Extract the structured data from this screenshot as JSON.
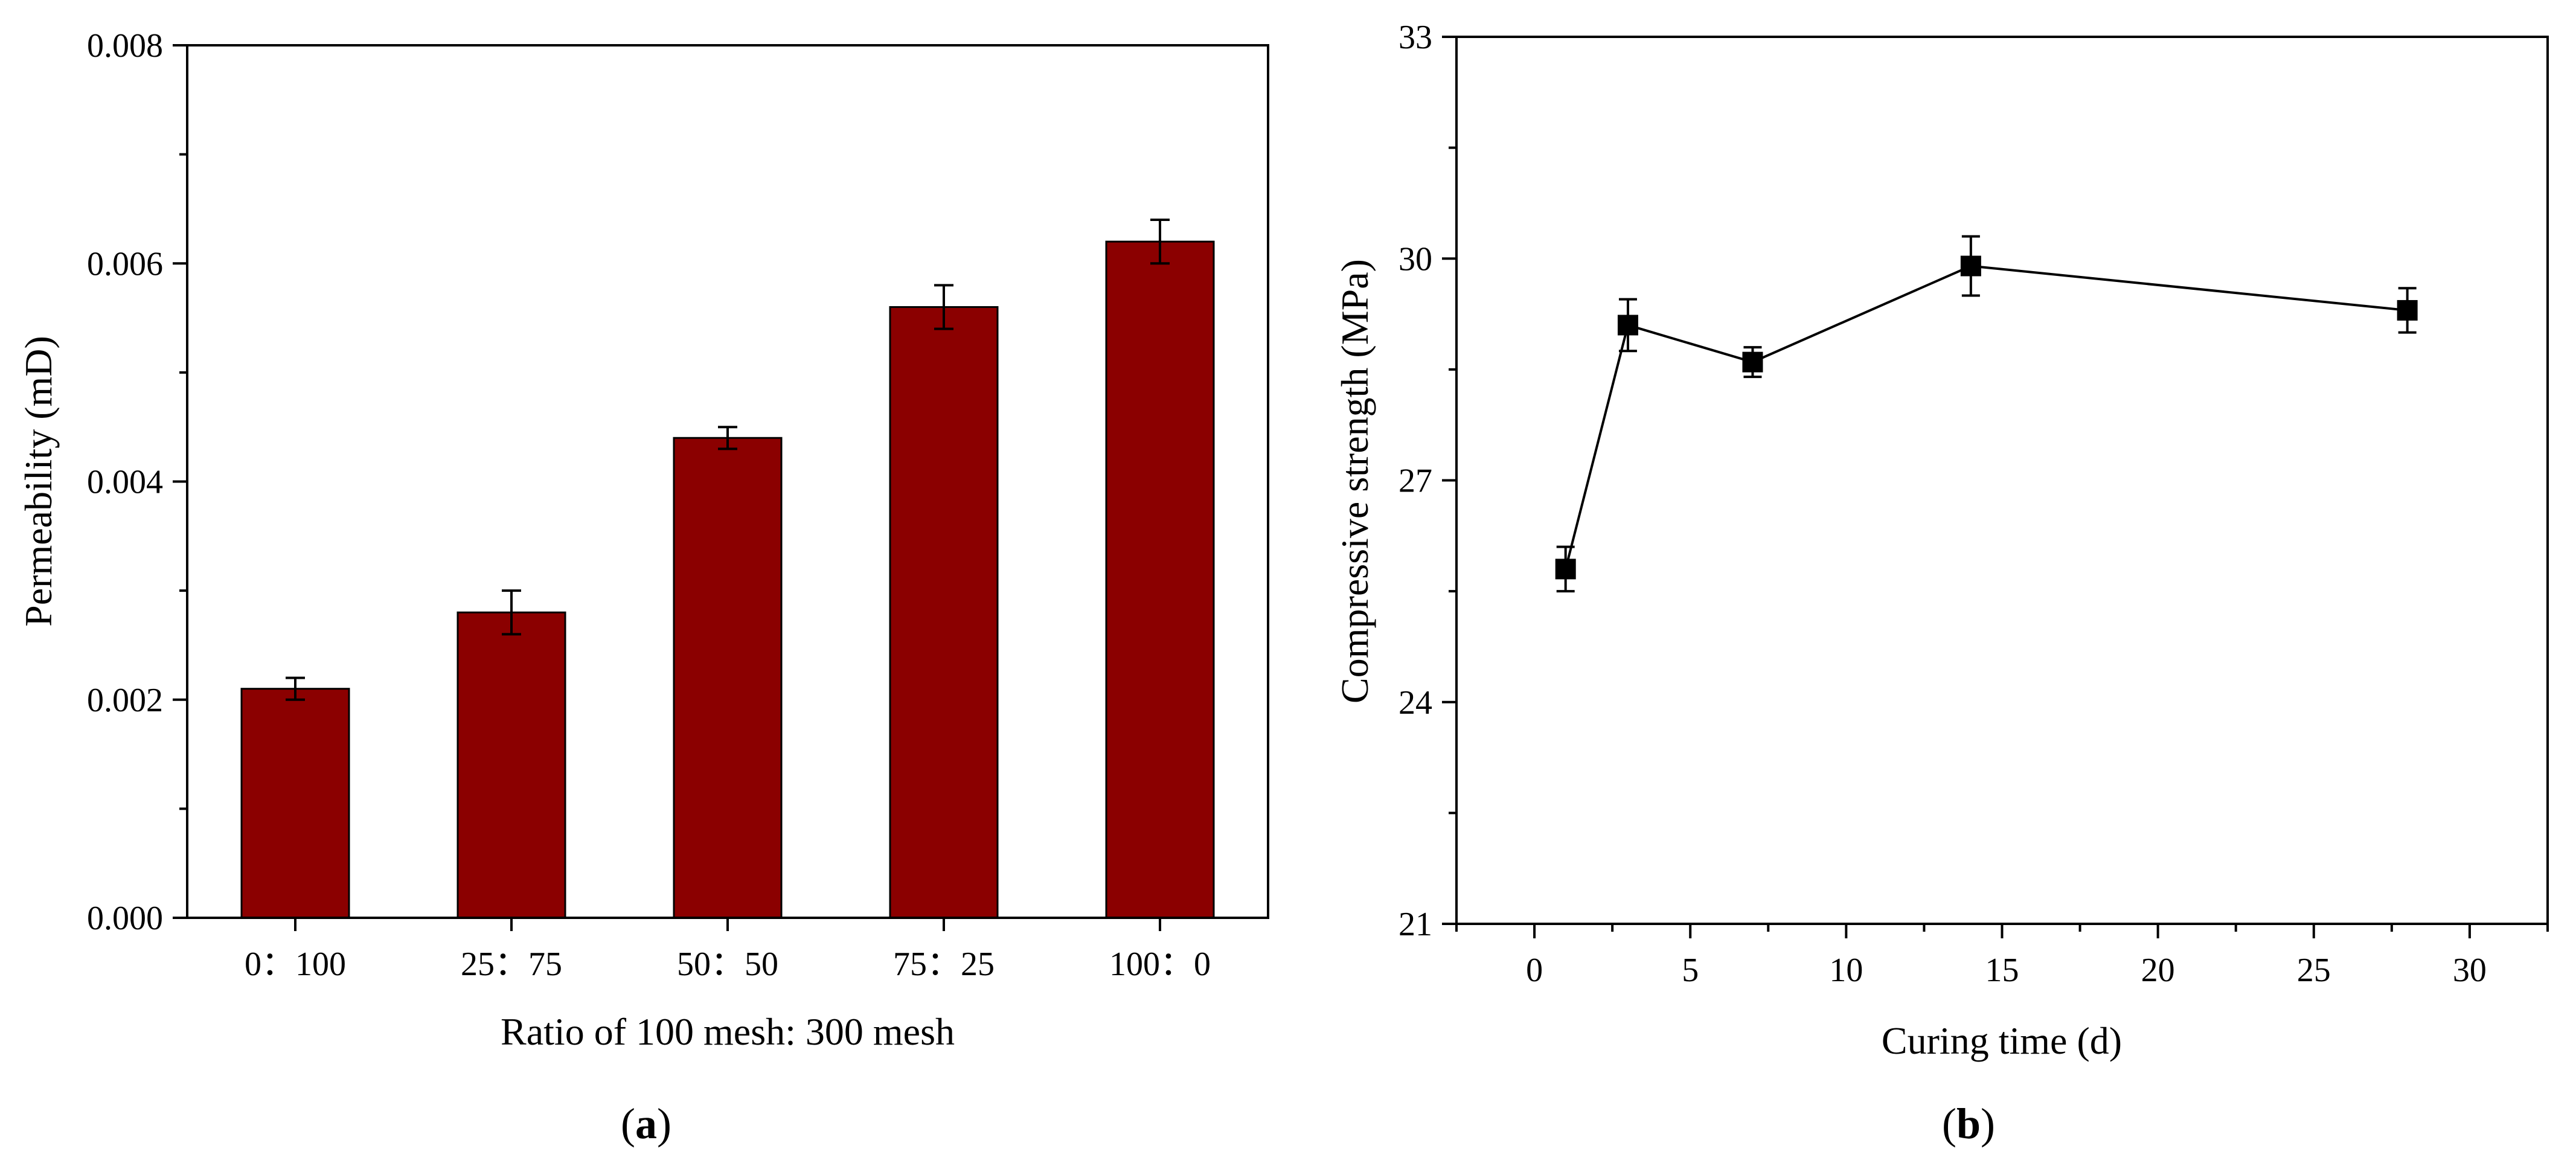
{
  "chart_data": [
    {
      "type": "bar",
      "panel_label": "(a)",
      "panel_letter": "a",
      "xlabel": "Ratio of 100 mesh: 300 mesh",
      "ylabel": "Permeability (mD)",
      "categories": [
        "0：100",
        "25：75",
        "50：50",
        "75：25",
        "100：0"
      ],
      "values": [
        0.0021,
        0.0028,
        0.0044,
        0.0056,
        0.0062
      ],
      "errors": [
        0.0001,
        0.0002,
        0.0001,
        0.0002,
        0.0002
      ],
      "ylim": [
        0,
        0.008
      ],
      "yticks": [
        0,
        0.002,
        0.004,
        0.006,
        0.008
      ],
      "ytick_labels": [
        "0.000",
        "0.002",
        "0.004",
        "0.006",
        "0.008"
      ],
      "bar_color": "#8b0000",
      "grid": false
    },
    {
      "type": "line",
      "panel_label": "(b)",
      "panel_letter": "b",
      "xlabel": "Curing time (d)",
      "ylabel": "Compressive strength (MPa)",
      "x": [
        1,
        3,
        7,
        14,
        28
      ],
      "y": [
        25.8,
        29.1,
        28.6,
        29.9,
        29.3
      ],
      "errors": [
        0.3,
        0.35,
        0.2,
        0.4,
        0.3
      ],
      "xlim": [
        -2.5,
        32.5
      ],
      "ylim": [
        21,
        33
      ],
      "xticks": [
        0,
        5,
        10,
        15,
        20,
        25,
        30
      ],
      "xtick_labels": [
        "0",
        "5",
        "10",
        "15",
        "20",
        "25",
        "30"
      ],
      "yticks": [
        21,
        24,
        27,
        30,
        33
      ],
      "ytick_labels": [
        "21",
        "24",
        "27",
        "30",
        "33"
      ],
      "marker": "square",
      "line_color": "#000000",
      "grid": false
    }
  ]
}
